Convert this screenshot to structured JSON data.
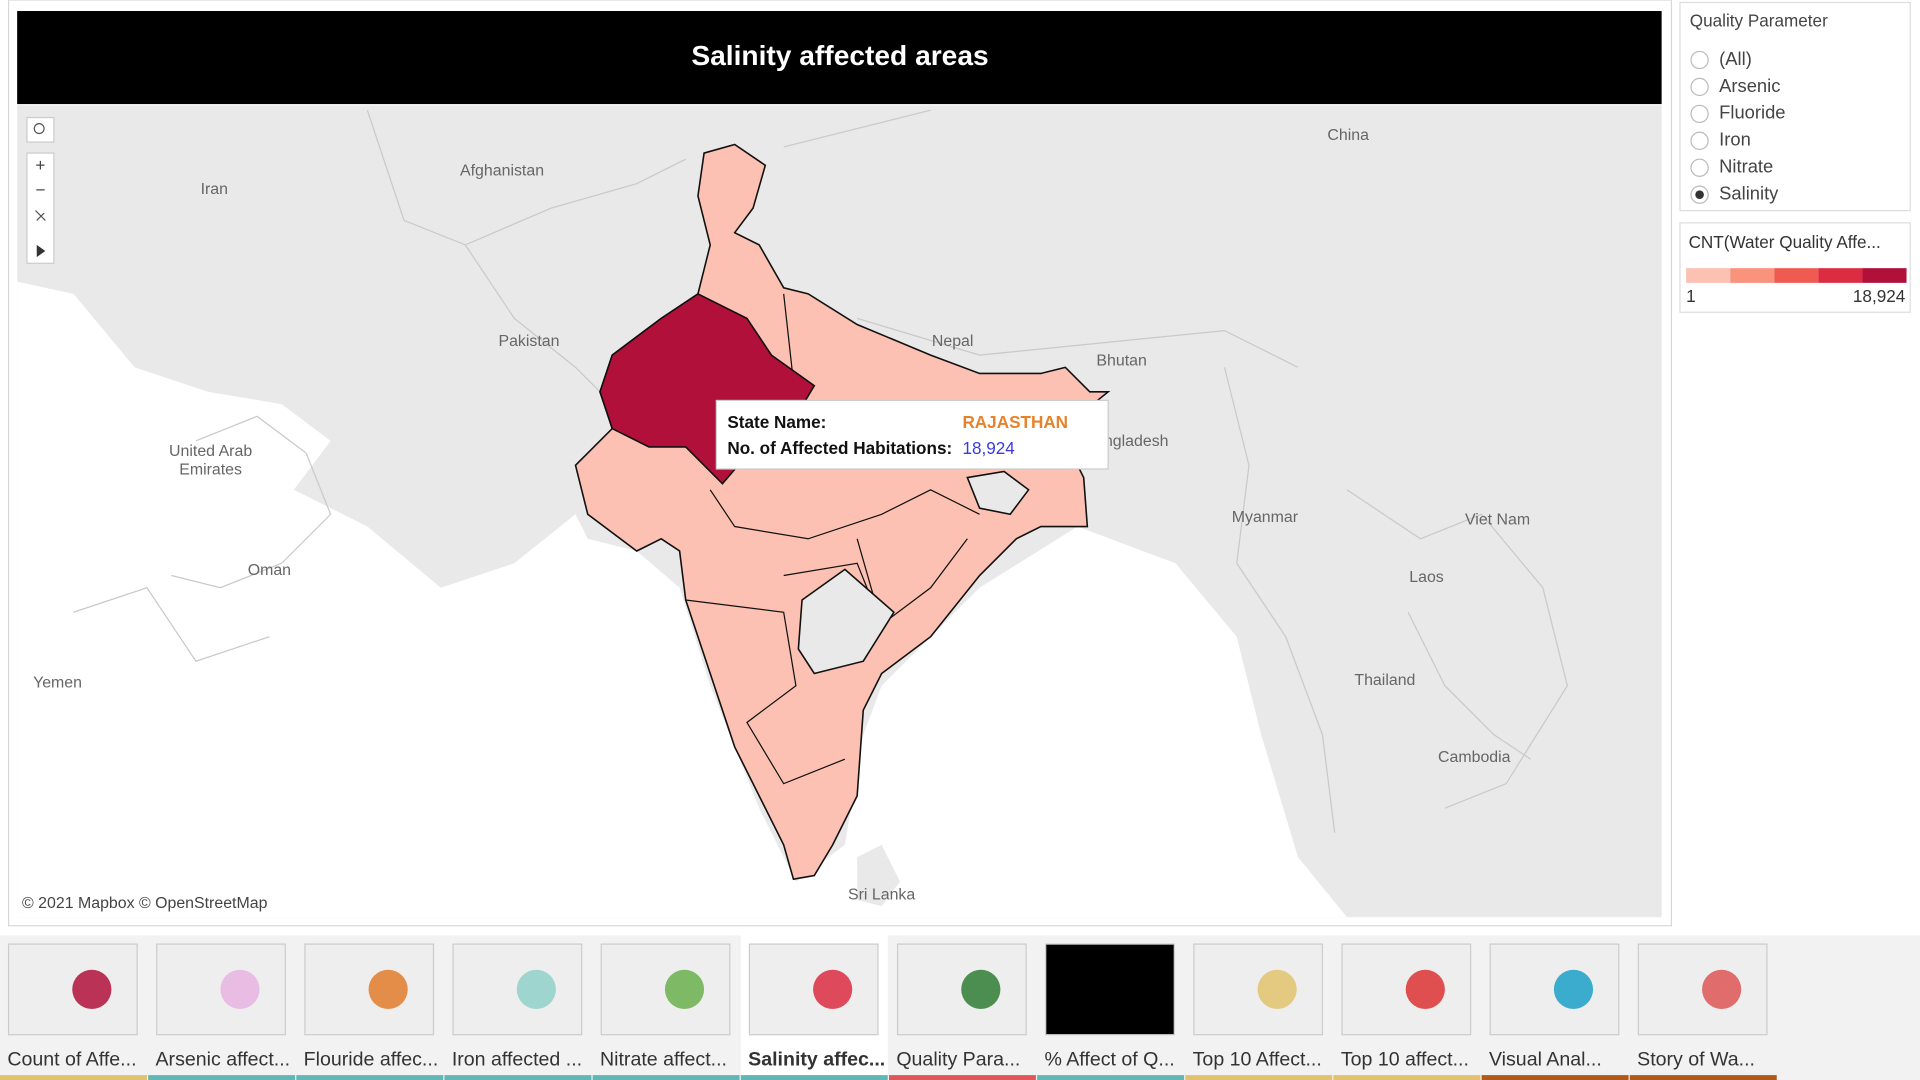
{
  "dashboard": {
    "title": "Salinity affected areas",
    "attribution": "© 2021 Mapbox © OpenStreetMap"
  },
  "map_labels": [
    "Iran",
    "Afghanistan",
    "Pakistan",
    "China",
    "Nepal",
    "Bhutan",
    "Bangladesh",
    "Myanmar",
    "Viet Nam",
    "Laos",
    "Thailand",
    "Cambodia",
    "Sri Lanka",
    "United Arab",
    "Emirates",
    "Oman",
    "Yemen"
  ],
  "tooltip": {
    "rows": [
      {
        "label": "State Name:",
        "value": "RAJASTHAN"
      },
      {
        "label": "No. of Affected Habitations:",
        "value": "18,924"
      }
    ]
  },
  "filter": {
    "title": "Quality Parameter",
    "options": [
      "(All)",
      "Arsenic",
      "Fluoride",
      "Iron",
      "Nitrate",
      "Salinity"
    ],
    "selected": "Salinity"
  },
  "legend": {
    "title": "CNT(Water Quality Affe...",
    "min": "1",
    "max": "18,924",
    "colors": [
      "#fcc1b2",
      "#f9937c",
      "#ef5b50",
      "#db2c42",
      "#b0103a"
    ]
  },
  "tabs": {
    "items": [
      "Count of Affe...",
      "Arsenic affect...",
      "Flouride affec...",
      "Iron affected ...",
      "Nitrate affect...",
      "Salinity affec...",
      "Quality Para...",
      "% Affect of Q...",
      "Top 10 Affect...",
      "Top 10 affect...",
      "Visual Anal...",
      "Story of Wa..."
    ],
    "selected": "Salinity affec..."
  }
}
